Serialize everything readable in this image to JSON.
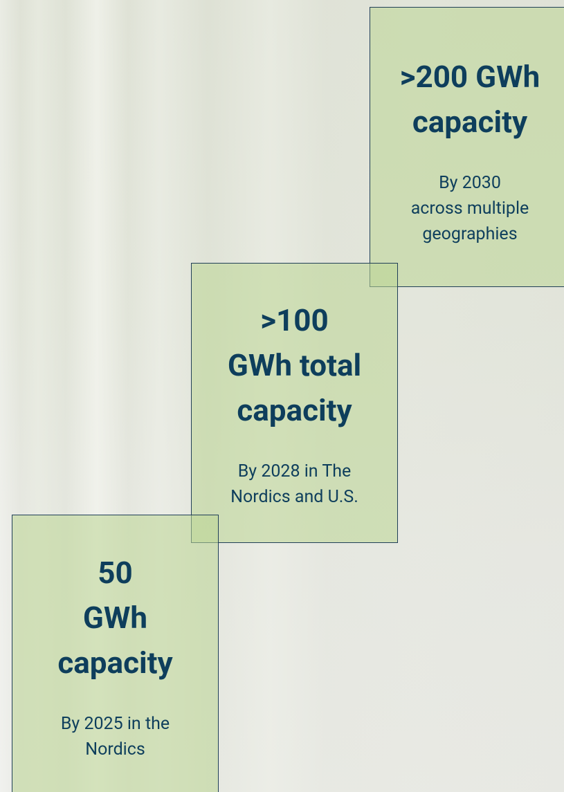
{
  "steps": [
    {
      "title_lines": [
        ">200 GWh",
        "capacity"
      ],
      "description_lines": [
        "By 2030",
        "across multiple",
        "geographies"
      ]
    },
    {
      "title_lines": [
        ">100",
        "GWh total",
        "capacity"
      ],
      "description_lines": [
        "By 2028 in The",
        "Nordics and U.S."
      ]
    },
    {
      "title_lines": [
        "50",
        "GWh",
        "capacity"
      ],
      "description_lines": [
        "By 2025 in the",
        "Nordics"
      ]
    }
  ]
}
